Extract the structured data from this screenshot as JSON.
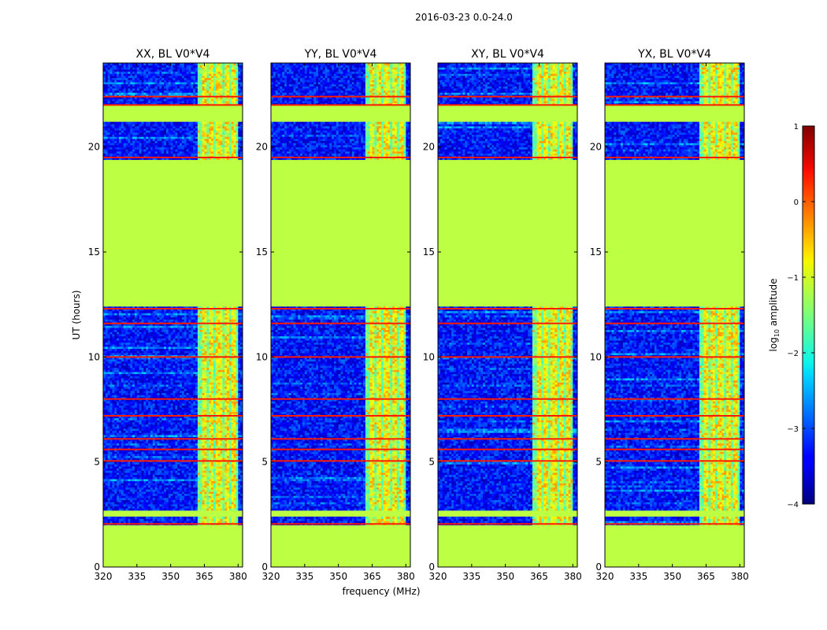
{
  "chart_data": {
    "type": "heatmap",
    "suptitle": "2016-03-23 0.0-24.0",
    "xlabel": "frequency (MHz)",
    "ylabel": "UT (hours)",
    "xlim": [
      320,
      382
    ],
    "ylim": [
      0,
      24
    ],
    "xticks": [
      320,
      335,
      350,
      365,
      380
    ],
    "yticks": [
      0,
      5,
      10,
      15,
      20
    ],
    "panels": [
      {
        "title": "XX, BL V0*V4"
      },
      {
        "title": "YY, BL V0*V4"
      },
      {
        "title": "XY, BL V0*V4"
      },
      {
        "title": "YX, BL V0*V4"
      }
    ],
    "colorbar": {
      "label_prefix": "log",
      "label_sub": "10",
      "label_suffix": " amplitude",
      "min": -4,
      "max": 1,
      "ticks": [
        -4,
        -3,
        -2,
        -1,
        0,
        1
      ],
      "tick_labels": [
        "−4",
        "−3",
        "−2",
        "−1",
        "0",
        "1"
      ],
      "colormap": "jet"
    },
    "flagged_value": -1.2,
    "flagged_ut_ranges": [
      [
        0.0,
        2.0
      ],
      [
        2.4,
        2.7
      ],
      [
        12.35,
        19.45
      ],
      [
        21.25,
        22.0
      ]
    ],
    "rfi_band_mhz": [
      362,
      380
    ],
    "rfi_columns_mhz": [
      [
        362,
        364.5
      ],
      [
        366.5,
        367.5
      ],
      [
        369.5,
        370.5
      ],
      [
        373,
        373.8
      ],
      [
        376.5,
        377.5
      ],
      [
        379,
        380
      ]
    ],
    "hot_lines_ut": [
      2.05,
      5.05,
      5.6,
      6.1,
      7.2,
      8.0,
      10.0,
      11.6,
      12.3,
      19.5,
      22.0,
      22.4
    ],
    "background_value": -3.3
  }
}
